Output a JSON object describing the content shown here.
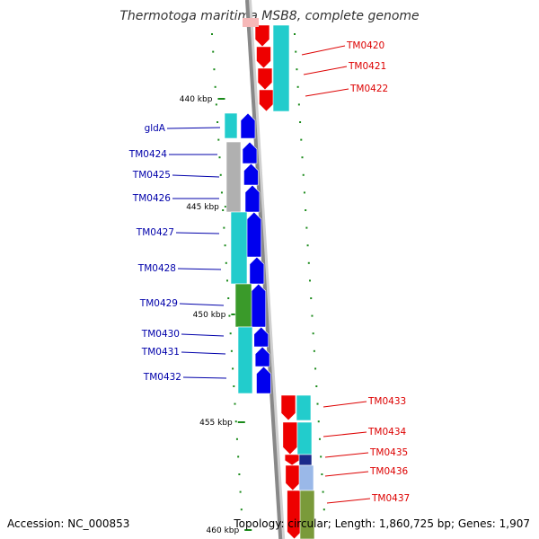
{
  "title": "Thermotoga maritima MSB8, complete genome",
  "footer": {
    "accession": "Accession: NC_000853",
    "summary": "Topology: circular; Length: 1,860,725 bp; Genes: 1,907"
  },
  "colors": {
    "forward_gene": "#0000ee",
    "reverse_gene": "#ee0000",
    "forward_label": "#0000aa",
    "reverse_label": "#dd0000",
    "tick": "#1a8a1a",
    "backbone": "#888888",
    "cyan": "#22cccc",
    "gray": "#b0b0b0",
    "green": "#3a9a2a",
    "navy": "#1a2a8a",
    "olive": "#7a9a3a",
    "lightblue": "#9ab8e8"
  },
  "kbp_labels": [
    {
      "id": "kbp-440",
      "text": "440 kbp"
    },
    {
      "id": "kbp-445",
      "text": "445 kbp"
    },
    {
      "id": "kbp-450",
      "text": "450 kbp"
    },
    {
      "id": "kbp-455",
      "text": "455 kbp"
    },
    {
      "id": "kbp-460",
      "text": "460 kbp"
    }
  ],
  "genes": [
    {
      "id": "TM0420",
      "label": "TM0420",
      "strand": "reverse"
    },
    {
      "id": "TM0421",
      "label": "TM0421",
      "strand": "reverse"
    },
    {
      "id": "TM0422",
      "label": "TM0422",
      "strand": "reverse"
    },
    {
      "id": "gldA",
      "label": "gldA",
      "strand": "forward"
    },
    {
      "id": "TM0424",
      "label": "TM0424",
      "strand": "forward"
    },
    {
      "id": "TM0425",
      "label": "TM0425",
      "strand": "forward"
    },
    {
      "id": "TM0426",
      "label": "TM0426",
      "strand": "forward"
    },
    {
      "id": "TM0427",
      "label": "TM0427",
      "strand": "forward"
    },
    {
      "id": "TM0428",
      "label": "TM0428",
      "strand": "forward"
    },
    {
      "id": "TM0429",
      "label": "TM0429",
      "strand": "forward"
    },
    {
      "id": "TM0430",
      "label": "TM0430",
      "strand": "forward"
    },
    {
      "id": "TM0431",
      "label": "TM0431",
      "strand": "forward"
    },
    {
      "id": "TM0432",
      "label": "TM0432",
      "strand": "forward"
    },
    {
      "id": "TM0433",
      "label": "TM0433",
      "strand": "reverse"
    },
    {
      "id": "TM0434",
      "label": "TM0434",
      "strand": "reverse"
    },
    {
      "id": "TM0435",
      "label": "TM0435",
      "strand": "reverse"
    },
    {
      "id": "TM0436",
      "label": "TM0436",
      "strand": "reverse"
    },
    {
      "id": "TM0437",
      "label": "TM0437",
      "strand": "reverse"
    }
  ]
}
